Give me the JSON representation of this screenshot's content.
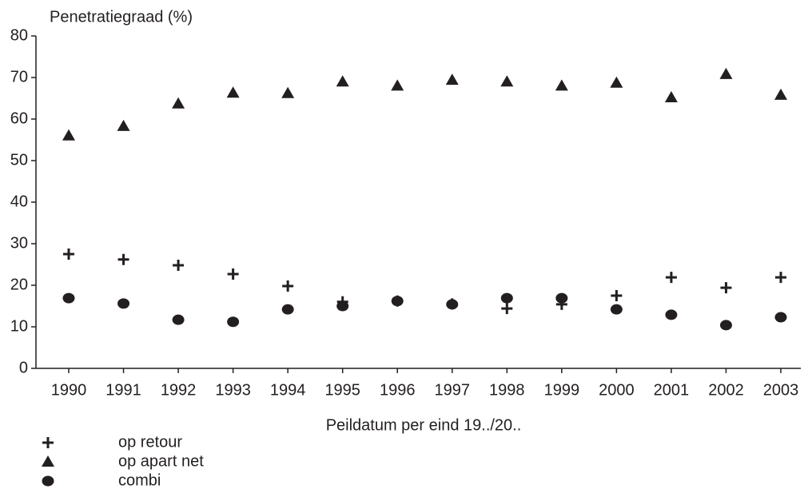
{
  "chart_data": {
    "type": "scatter",
    "y_label": "Penetratiegraad (%)",
    "x_label": "Peildatum per eind 19../20..",
    "categories": [
      "1990",
      "1991",
      "1992",
      "1993",
      "1994",
      "1995",
      "1996",
      "1997",
      "1998",
      "1999",
      "2000",
      "2001",
      "2002",
      "2003"
    ],
    "series": [
      {
        "name": "op retour",
        "color": "#231f20",
        "marker": "plus",
        "values": [
          27.5,
          26.2,
          24.8,
          22.7,
          19.8,
          16,
          16.2,
          15.5,
          14.4,
          15.4,
          17.5,
          21.9,
          19.4,
          21.9
        ]
      },
      {
        "name": "op apart net",
        "color": "#231f20",
        "marker": "triangle",
        "values": [
          56,
          58.3,
          63.7,
          66.3,
          66.2,
          69,
          68,
          69.4,
          69,
          68,
          68.7,
          65.2,
          70.8,
          65.8
        ]
      },
      {
        "name": "combi",
        "color": "#231f20",
        "marker": "circle",
        "values": [
          16.9,
          15.6,
          11.7,
          11.2,
          14.2,
          15,
          16.2,
          15.4,
          16.9,
          16.9,
          14.2,
          12.9,
          10.4,
          12.3
        ]
      }
    ],
    "ylim": [
      0,
      80
    ],
    "yticks": [
      0,
      10,
      20,
      30,
      40,
      50,
      60,
      70,
      80
    ],
    "grid": false,
    "legend": "bottom-left"
  }
}
